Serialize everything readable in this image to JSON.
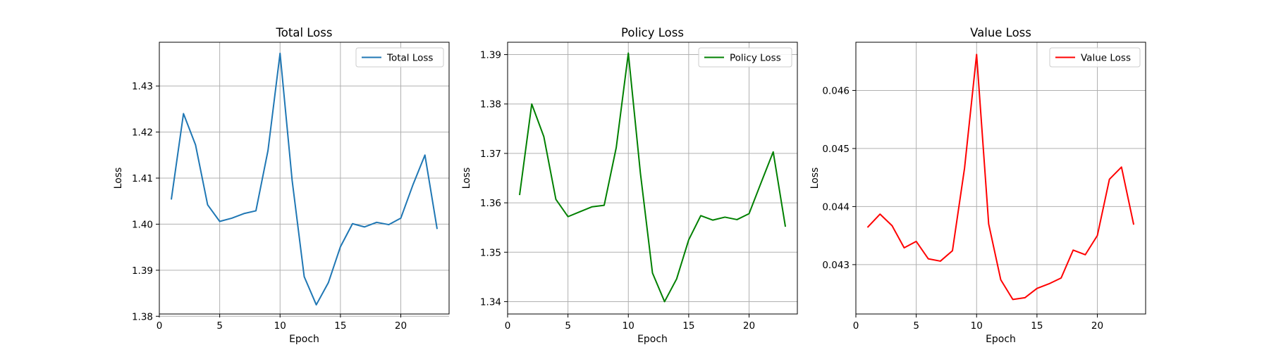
{
  "chart_data": [
    {
      "type": "line",
      "title": "Total Loss",
      "xlabel": "Epoch",
      "ylabel": "Loss",
      "xlim": [
        0,
        24
      ],
      "ylim": [
        1.3805,
        1.4395
      ],
      "xticks": [
        0,
        5,
        10,
        15,
        20
      ],
      "yticks": [
        1.38,
        1.39,
        1.4,
        1.41,
        1.42,
        1.43
      ],
      "ytick_labels": [
        "1.38",
        "1.39",
        "1.40",
        "1.41",
        "1.42",
        "1.43"
      ],
      "grid": true,
      "legend": "upper right",
      "x": [
        1,
        2,
        3,
        4,
        5,
        6,
        7,
        8,
        9,
        10,
        11,
        12,
        13,
        14,
        15,
        16,
        17,
        18,
        19,
        20,
        21,
        22,
        23
      ],
      "series": [
        {
          "name": "Total Loss",
          "color": "#1f77b4",
          "values": [
            1.4055,
            1.424,
            1.4172,
            1.4042,
            1.4006,
            1.4013,
            1.4023,
            1.4029,
            1.416,
            1.4371,
            1.4095,
            1.3886,
            1.3825,
            1.3873,
            1.3951,
            1.4001,
            1.3994,
            1.4004,
            1.3999,
            1.4013,
            1.4085,
            1.415,
            1.3991
          ]
        }
      ]
    },
    {
      "type": "line",
      "title": "Policy Loss",
      "xlabel": "Epoch",
      "ylabel": "Loss",
      "xlim": [
        0,
        24
      ],
      "ylim": [
        1.3375,
        1.3925
      ],
      "xticks": [
        0,
        5,
        10,
        15,
        20
      ],
      "yticks": [
        1.34,
        1.35,
        1.36,
        1.37,
        1.38,
        1.39
      ],
      "ytick_labels": [
        "1.34",
        "1.35",
        "1.36",
        "1.37",
        "1.38",
        "1.39"
      ],
      "grid": true,
      "legend": "upper right",
      "x": [
        1,
        2,
        3,
        4,
        5,
        6,
        7,
        8,
        9,
        10,
        11,
        12,
        13,
        14,
        15,
        16,
        17,
        18,
        19,
        20,
        21,
        22,
        23
      ],
      "series": [
        {
          "name": "Policy Loss",
          "color": "#008000",
          "values": [
            1.3617,
            1.38,
            1.3734,
            1.3607,
            1.3572,
            1.3582,
            1.3592,
            1.3595,
            1.3712,
            1.3903,
            1.366,
            1.3458,
            1.34,
            1.3446,
            1.3525,
            1.3574,
            1.3565,
            1.3571,
            1.3566,
            1.3578,
            1.3641,
            1.3703,
            1.3553
          ]
        }
      ]
    },
    {
      "type": "line",
      "title": "Value Loss",
      "xlabel": "Epoch",
      "ylabel": "Loss",
      "xlim": [
        0,
        24
      ],
      "ylim": [
        0.04215,
        0.04683
      ],
      "xticks": [
        0,
        5,
        10,
        15,
        20
      ],
      "yticks": [
        0.043,
        0.044,
        0.045,
        0.046
      ],
      "ytick_labels": [
        "0.043",
        "0.044",
        "0.045",
        "0.046"
      ],
      "grid": true,
      "legend": "upper right",
      "x": [
        1,
        2,
        3,
        4,
        5,
        6,
        7,
        8,
        9,
        10,
        11,
        12,
        13,
        14,
        15,
        16,
        17,
        18,
        19,
        20,
        21,
        22,
        23
      ],
      "series": [
        {
          "name": "Value Loss",
          "color": "#ff0000",
          "values": [
            0.04365,
            0.04387,
            0.04367,
            0.04329,
            0.0434,
            0.0431,
            0.04306,
            0.04324,
            0.04466,
            0.04662,
            0.0437,
            0.04274,
            0.0424,
            0.04243,
            0.04259,
            0.04267,
            0.04277,
            0.04325,
            0.04317,
            0.0435,
            0.04447,
            0.04468,
            0.0437
          ]
        }
      ]
    }
  ]
}
